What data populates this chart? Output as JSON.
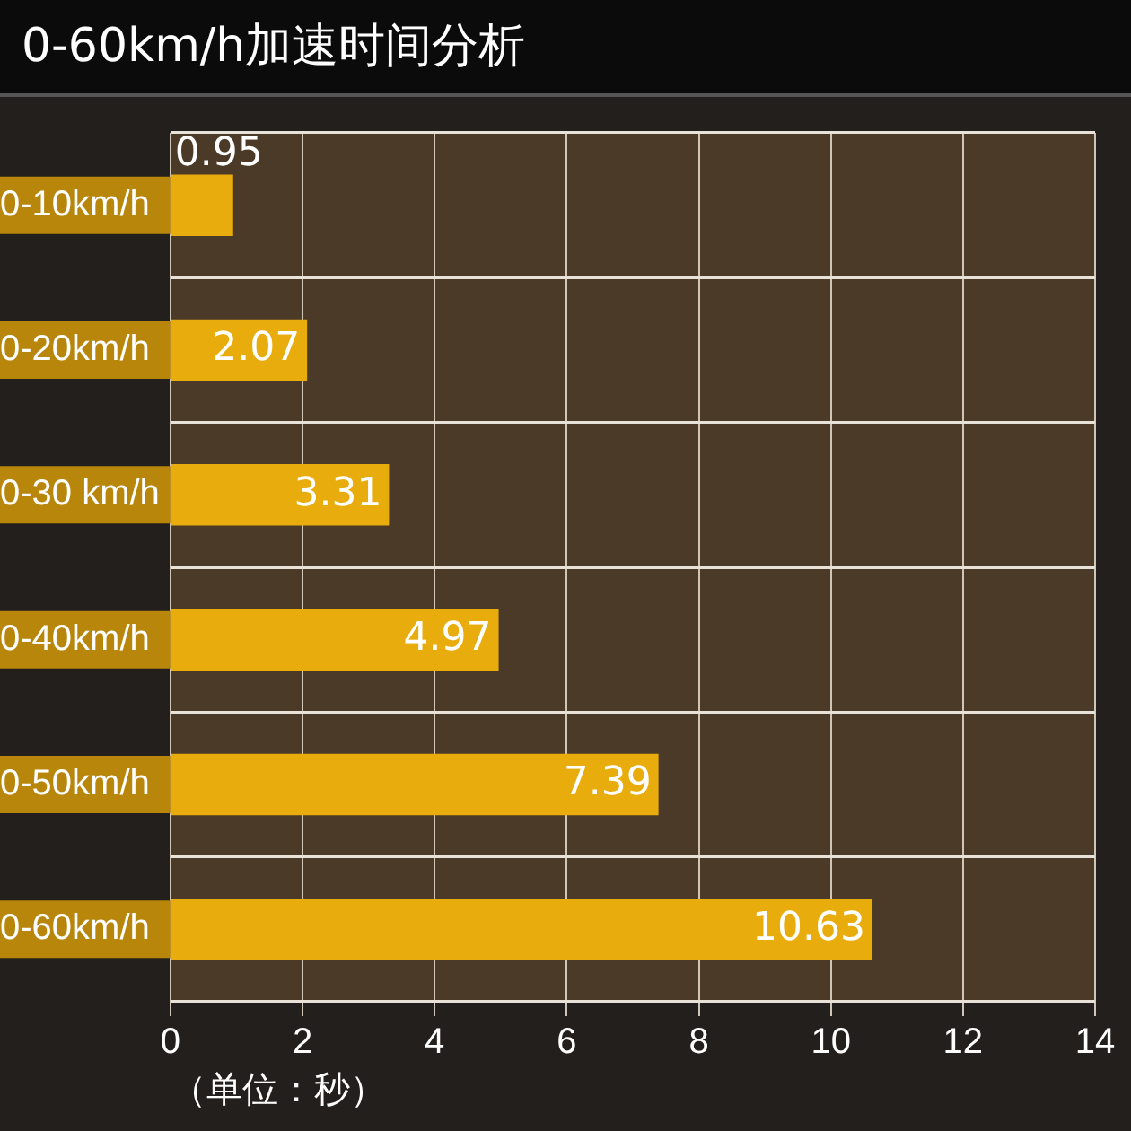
{
  "chart_data": {
    "type": "bar",
    "orientation": "horizontal",
    "title": "0-60km/h加速时间分析",
    "xlabel": "（单位：秒）",
    "categories": [
      "0-10km/h",
      "0-20km/h",
      "0-30 km/h",
      "0-40km/h",
      "0-50km/h",
      "0-60km/h"
    ],
    "values": [
      0.95,
      2.07,
      3.31,
      4.97,
      7.39,
      10.63
    ],
    "color": "#e8ac0c",
    "xlim": [
      0,
      14
    ],
    "xticks": [
      0,
      2,
      4,
      6,
      8,
      10,
      12,
      14
    ],
    "grid": true,
    "data_labels": true
  }
}
